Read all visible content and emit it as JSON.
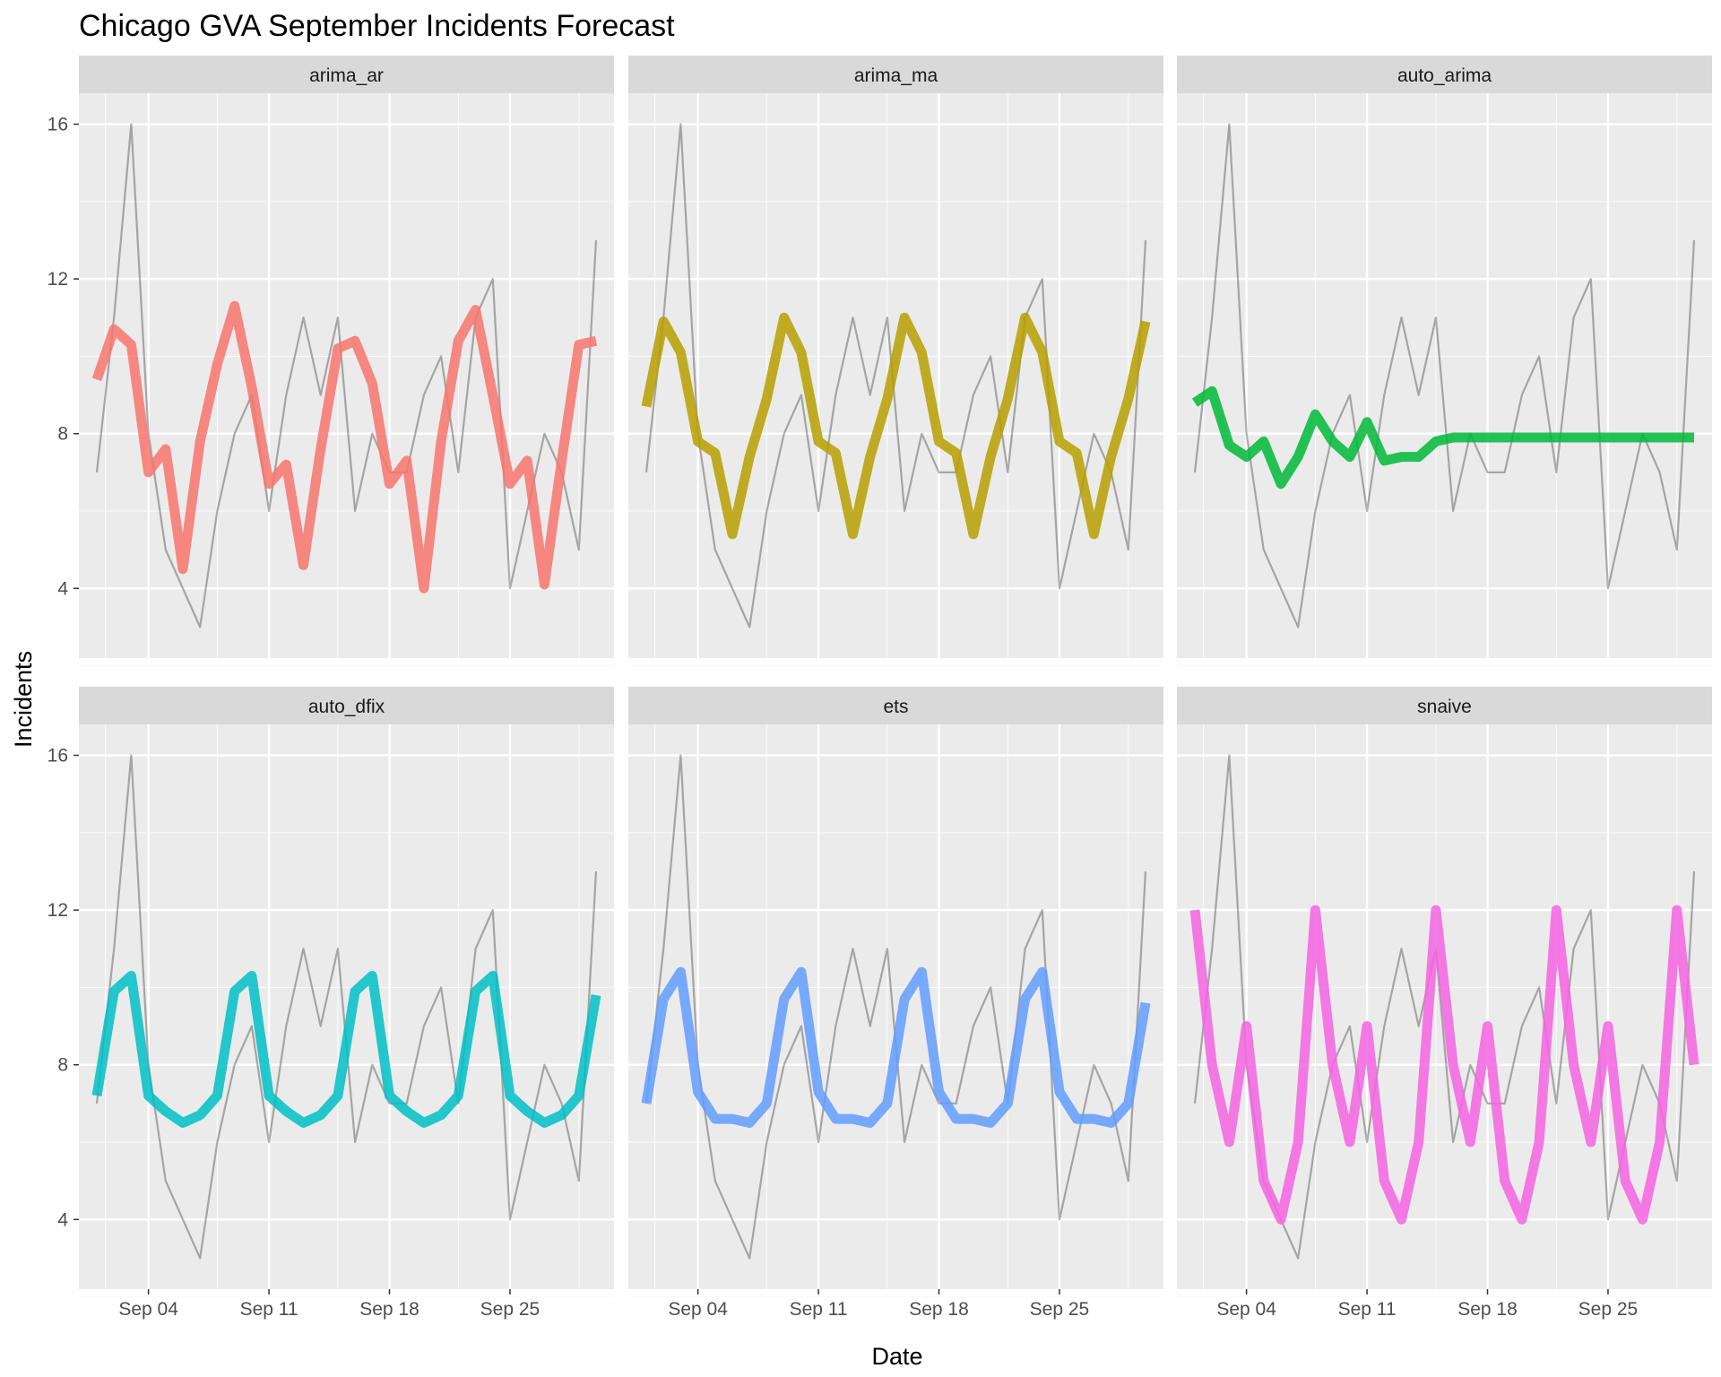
{
  "chart_data": {
    "type": "line",
    "title": "Chicago GVA September Incidents Forecast",
    "xlabel": "Date",
    "ylabel": "Incidents",
    "x_ticks": [
      "Sep 04",
      "Sep 11",
      "Sep 18",
      "Sep 25"
    ],
    "y_ticks": [
      4,
      8,
      12,
      16
    ],
    "ylim": [
      2.2,
      16.8
    ],
    "grid": true,
    "dates": [
      "Sep 01",
      "Sep 02",
      "Sep 03",
      "Sep 04",
      "Sep 05",
      "Sep 06",
      "Sep 07",
      "Sep 08",
      "Sep 09",
      "Sep 10",
      "Sep 11",
      "Sep 12",
      "Sep 13",
      "Sep 14",
      "Sep 15",
      "Sep 16",
      "Sep 17",
      "Sep 18",
      "Sep 19",
      "Sep 20",
      "Sep 21",
      "Sep 22",
      "Sep 23",
      "Sep 24",
      "Sep 25",
      "Sep 26",
      "Sep 27",
      "Sep 28",
      "Sep 29",
      "Sep 30"
    ],
    "actual": [
      7,
      11,
      16,
      8,
      5,
      4,
      3,
      6,
      8,
      9,
      6,
      9,
      11,
      9,
      11,
      6,
      8,
      7,
      7,
      9,
      10,
      7,
      11,
      12,
      4,
      6,
      8,
      7,
      5,
      13
    ],
    "panels": [
      {
        "name": "arima_ar",
        "color": "#F8766D",
        "values": [
          9.4,
          10.7,
          10.3,
          7.0,
          7.6,
          4.5,
          7.8,
          9.8,
          11.3,
          9.2,
          6.7,
          7.2,
          4.6,
          7.6,
          10.2,
          10.4,
          9.3,
          6.7,
          7.3,
          4.0,
          7.8,
          10.4,
          11.2,
          9.0,
          6.7,
          7.3,
          4.1,
          7.3,
          10.3,
          10.4
        ]
      },
      {
        "name": "arima_ma",
        "color": "#B79F00",
        "values": [
          8.7,
          10.9,
          10.1,
          7.8,
          7.5,
          5.4,
          7.4,
          8.9,
          11.0,
          10.1,
          7.8,
          7.5,
          5.4,
          7.4,
          8.9,
          11.0,
          10.1,
          7.8,
          7.5,
          5.4,
          7.4,
          8.9,
          11.0,
          10.1,
          7.8,
          7.5,
          5.4,
          7.4,
          8.9,
          10.9
        ]
      },
      {
        "name": "auto_arima",
        "color": "#00BA38",
        "values": [
          8.8,
          9.1,
          7.7,
          7.4,
          7.8,
          6.7,
          7.4,
          8.5,
          7.8,
          7.4,
          8.3,
          7.3,
          7.4,
          7.4,
          7.8,
          7.9,
          7.9,
          7.9,
          7.9,
          7.9,
          7.9,
          7.9,
          7.9,
          7.9,
          7.9,
          7.9,
          7.9,
          7.9,
          7.9,
          7.9
        ]
      },
      {
        "name": "auto_dfix",
        "color": "#00BFC4",
        "values": [
          7.2,
          9.9,
          10.3,
          7.2,
          6.8,
          6.5,
          6.7,
          7.2,
          9.9,
          10.3,
          7.2,
          6.8,
          6.5,
          6.7,
          7.2,
          9.9,
          10.3,
          7.2,
          6.8,
          6.5,
          6.7,
          7.2,
          9.9,
          10.3,
          7.2,
          6.8,
          6.5,
          6.7,
          7.2,
          9.8
        ]
      },
      {
        "name": "ets",
        "color": "#619CFF",
        "values": [
          7.0,
          9.7,
          10.4,
          7.3,
          6.6,
          6.6,
          6.5,
          7.0,
          9.7,
          10.4,
          7.3,
          6.6,
          6.6,
          6.5,
          7.0,
          9.7,
          10.4,
          7.3,
          6.6,
          6.6,
          6.5,
          7.0,
          9.7,
          10.4,
          7.3,
          6.6,
          6.6,
          6.5,
          7.0,
          9.6
        ]
      },
      {
        "name": "snaive",
        "color": "#F564E3",
        "values": [
          12,
          8,
          6,
          9,
          5,
          4,
          6,
          12,
          8,
          6,
          9,
          5,
          4,
          6,
          12,
          8,
          6,
          9,
          5,
          4,
          6,
          12,
          8,
          6,
          9,
          5,
          4,
          6,
          12,
          8
        ]
      }
    ]
  }
}
